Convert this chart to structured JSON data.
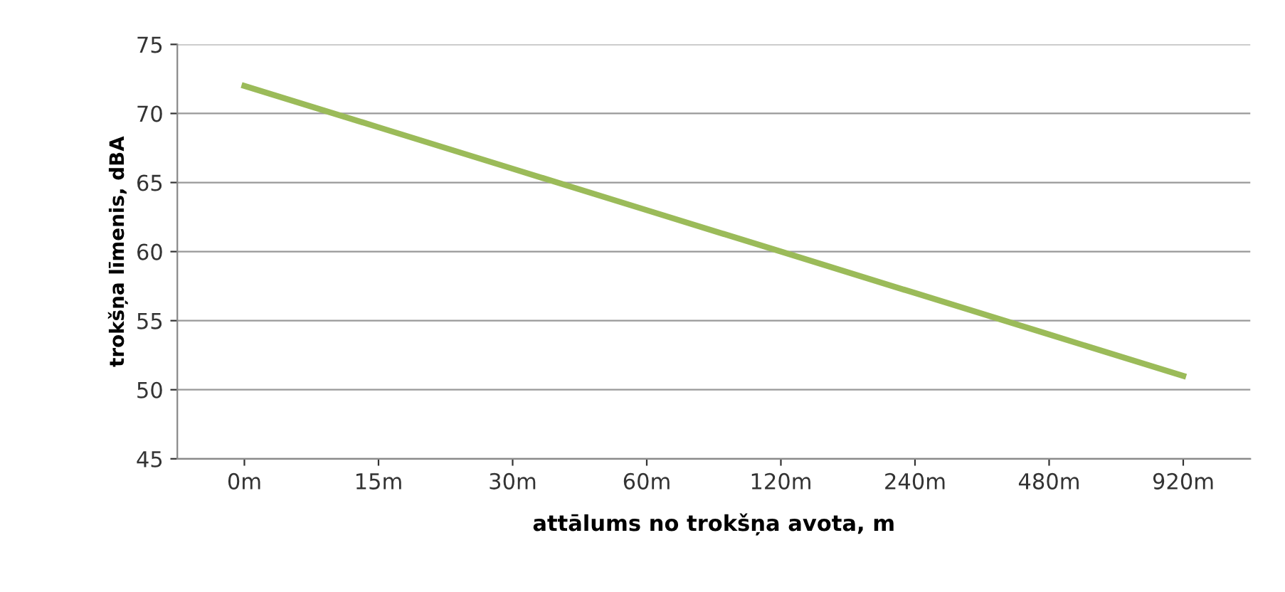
{
  "chart_data": {
    "type": "line",
    "xlabel": "attālums no trokšņa avota, m",
    "ylabel": "trokšņa līmenis, dBA",
    "categories": [
      "0m",
      "15m",
      "30m",
      "60m",
      "120m",
      "240m",
      "480m",
      "920m"
    ],
    "series": [
      {
        "color": "#9bbb59",
        "values": [
          72,
          69,
          66,
          63,
          60,
          57,
          54,
          51
        ]
      }
    ],
    "ylim": [
      45,
      75
    ],
    "yticks": [
      45,
      50,
      55,
      60,
      65,
      70,
      75
    ],
    "grid": "y",
    "legend": false,
    "marker": "none",
    "line_style": "solid"
  }
}
